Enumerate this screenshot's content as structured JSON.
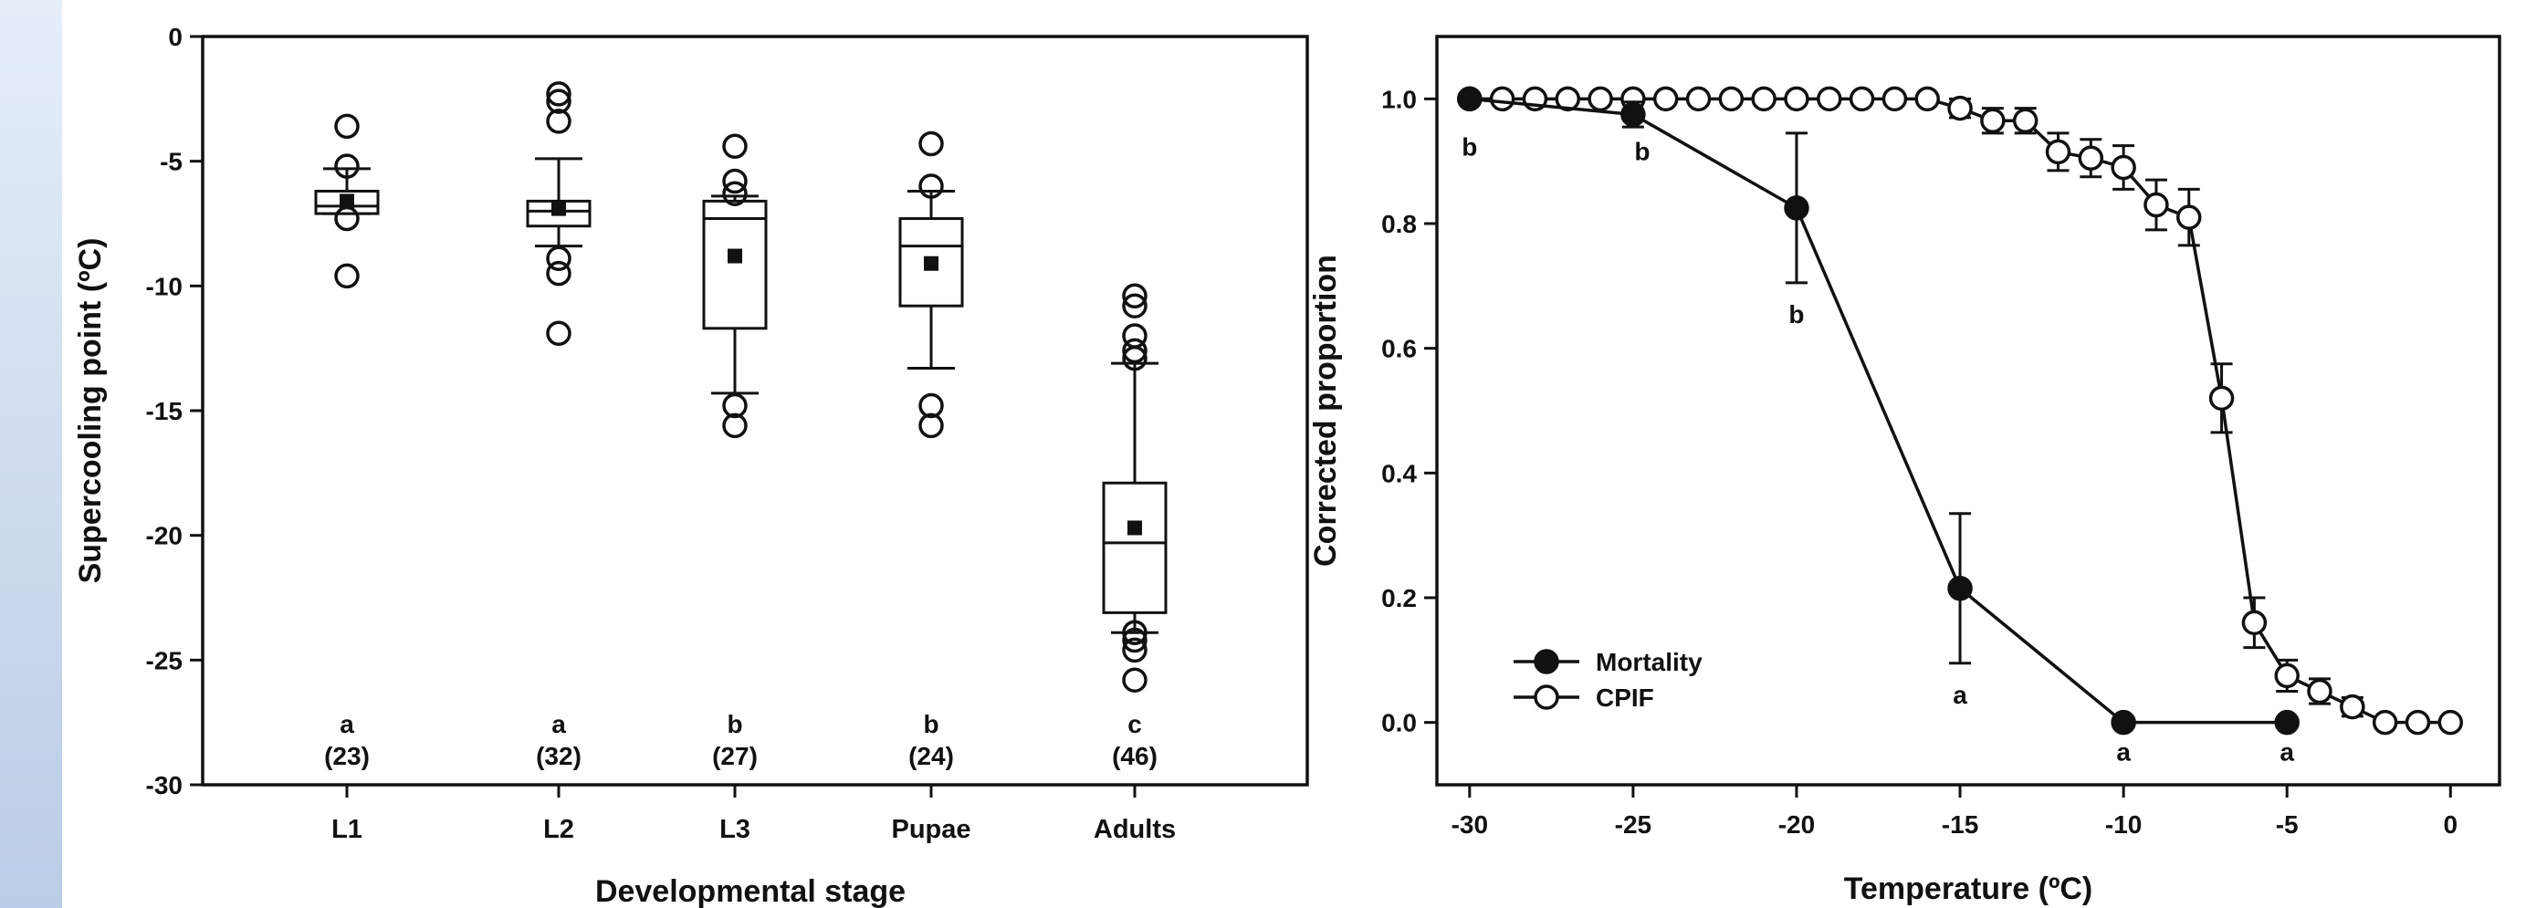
{
  "colors": {
    "side_strip": "#cfdcee",
    "ink": "#111111",
    "background": "#ffffff"
  },
  "chart_data": [
    {
      "type": "box",
      "xlabel": "Developmental stage",
      "ylabel": "Supercooling point (ºC)",
      "ylim": [
        -30,
        0
      ],
      "yticks": [
        0,
        -5,
        -10,
        -15,
        -20,
        -25,
        -30
      ],
      "categories": [
        "L1",
        "L2",
        "L3",
        "Pupae",
        "Adults"
      ],
      "letters": [
        "a",
        "a",
        "b",
        "b",
        "c"
      ],
      "n_labels": [
        "(23)",
        "(32)",
        "(27)",
        "(24)",
        "(46)"
      ],
      "boxes": [
        {
          "q1": -7.1,
          "median": -6.8,
          "q3": -6.2,
          "mean": -6.6,
          "whisker_low": -7.1,
          "whisker_high": -5.3,
          "outliers": [
            -3.6,
            -5.2,
            -7.3,
            -9.6
          ]
        },
        {
          "q1": -7.6,
          "median": -7.0,
          "q3": -6.6,
          "mean": -6.9,
          "whisker_low": -8.4,
          "whisker_high": -4.9,
          "outliers": [
            -2.3,
            -2.6,
            -3.4,
            -8.9,
            -9.5,
            -11.9
          ]
        },
        {
          "q1": -11.7,
          "median": -7.3,
          "q3": -6.6,
          "mean": -8.8,
          "whisker_low": -14.3,
          "whisker_high": -6.4,
          "outliers": [
            -4.4,
            -5.8,
            -6.3,
            -14.8,
            -15.6
          ]
        },
        {
          "q1": -10.8,
          "median": -8.4,
          "q3": -7.3,
          "mean": -9.1,
          "whisker_low": -13.3,
          "whisker_high": -6.2,
          "outliers": [
            -4.3,
            -6.0,
            -14.8,
            -15.6
          ]
        },
        {
          "q1": -23.1,
          "median": -20.3,
          "q3": -17.9,
          "mean": -19.7,
          "whisker_low": -23.9,
          "whisker_high": -13.1,
          "outliers": [
            -10.4,
            -10.8,
            -12.0,
            -12.6,
            -12.9,
            -23.9,
            -24.2,
            -24.6,
            -25.8
          ]
        }
      ]
    },
    {
      "type": "line",
      "xlabel": "Temperature (ºC)",
      "ylabel": "Corrected proportion",
      "xlim": [
        -31,
        1.5
      ],
      "ylim": [
        -0.1,
        1.1
      ],
      "xticks": [
        -30,
        -25,
        -20,
        -15,
        -10,
        -5,
        0
      ],
      "yticks": [
        0.0,
        0.2,
        0.4,
        0.6,
        0.8,
        1.0
      ],
      "ytick_labels": [
        "0.0",
        "0.2",
        "0.4",
        "0.6",
        "0.8",
        "1.0"
      ],
      "legend_position": "bottom-left",
      "series": [
        {
          "name": "Mortality",
          "marker": "filled-circle",
          "x": [
            -30,
            -25,
            -20,
            -15,
            -10,
            -5
          ],
          "y": [
            1.0,
            0.975,
            0.825,
            0.215,
            0.0,
            0.0
          ],
          "err": [
            0,
            0.02,
            0.12,
            0.12,
            0,
            0
          ],
          "letters": [
            "b",
            "b",
            "b",
            "a",
            "a",
            "a"
          ]
        },
        {
          "name": "CPIF",
          "marker": "open-circle",
          "x": [
            -30,
            -29,
            -28,
            -27,
            -26,
            -25,
            -24,
            -23,
            -22,
            -21,
            -20,
            -19,
            -18,
            -17,
            -16,
            -15,
            -14,
            -13,
            -12,
            -11,
            -10,
            -9,
            -8,
            -7,
            -6,
            -5,
            -4,
            -3,
            -2,
            -1,
            0
          ],
          "y": [
            1.0,
            1.0,
            1.0,
            1.0,
            1.0,
            1.0,
            1.0,
            1.0,
            1.0,
            1.0,
            1.0,
            1.0,
            1.0,
            1.0,
            1.0,
            0.985,
            0.965,
            0.965,
            0.915,
            0.905,
            0.89,
            0.83,
            0.81,
            0.52,
            0.16,
            0.075,
            0.05,
            0.025,
            0.0,
            0.0,
            0.0
          ],
          "err": [
            0,
            0,
            0,
            0,
            0,
            0,
            0,
            0,
            0,
            0,
            0,
            0,
            0,
            0,
            0,
            0.015,
            0.02,
            0.02,
            0.03,
            0.03,
            0.035,
            0.04,
            0.045,
            0.055,
            0.04,
            0.025,
            0.02,
            0.015,
            0,
            0,
            0
          ]
        }
      ]
    }
  ]
}
